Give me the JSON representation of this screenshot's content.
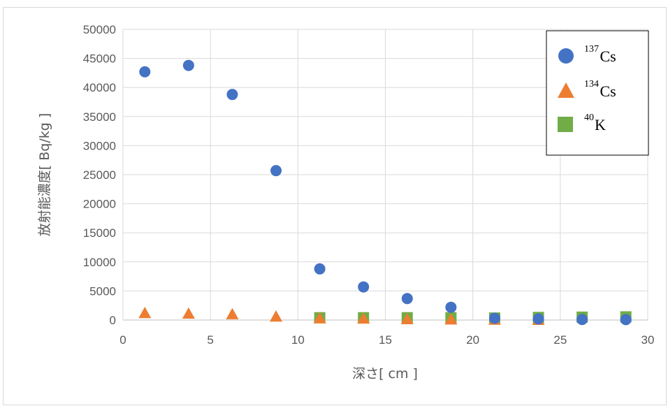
{
  "chart_data": {
    "type": "scatter",
    "xlabel": "深さ[ cm ]",
    "ylabel": "放射能濃度[ Bq/kg ]",
    "xlim": [
      0,
      30
    ],
    "ylim": [
      0,
      50000
    ],
    "x_ticks": [
      "0",
      "5",
      "10",
      "15",
      "20",
      "25",
      "30"
    ],
    "y_ticks": [
      "0",
      "5000",
      "10000",
      "15000",
      "20000",
      "25000",
      "30000",
      "35000",
      "40000",
      "45000",
      "50000"
    ],
    "grid": true,
    "legend_position": "top-right",
    "series": [
      {
        "name": "137Cs",
        "legend_sup": "137",
        "legend_base": "Cs",
        "marker": "circle",
        "color": "#4472C4",
        "points": [
          [
            1.25,
            42700
          ],
          [
            3.75,
            43800
          ],
          [
            6.25,
            38800
          ],
          [
            8.75,
            25700
          ],
          [
            11.25,
            8800
          ],
          [
            13.75,
            5700
          ],
          [
            16.25,
            3700
          ],
          [
            18.75,
            2200
          ],
          [
            21.25,
            300
          ],
          [
            23.75,
            200
          ],
          [
            26.25,
            100
          ],
          [
            28.75,
            80
          ]
        ]
      },
      {
        "name": "134Cs",
        "legend_sup": "134",
        "legend_base": "Cs",
        "marker": "triangle",
        "color": "#ED7D31",
        "points": [
          [
            1.25,
            1200
          ],
          [
            3.75,
            1100
          ],
          [
            6.25,
            1000
          ],
          [
            8.75,
            600
          ],
          [
            11.25,
            300
          ],
          [
            13.75,
            250
          ],
          [
            16.25,
            150
          ],
          [
            18.75,
            100
          ],
          [
            21.25,
            50
          ],
          [
            23.75,
            30
          ]
        ]
      },
      {
        "name": "40K",
        "legend_sup": "40",
        "legend_base": "K",
        "marker": "square",
        "color": "#70AD47",
        "points": [
          [
            11.25,
            400
          ],
          [
            13.75,
            400
          ],
          [
            16.25,
            400
          ],
          [
            18.75,
            400
          ],
          [
            21.25,
            350
          ],
          [
            23.75,
            450
          ],
          [
            26.25,
            500
          ],
          [
            28.75,
            550
          ]
        ]
      }
    ]
  }
}
